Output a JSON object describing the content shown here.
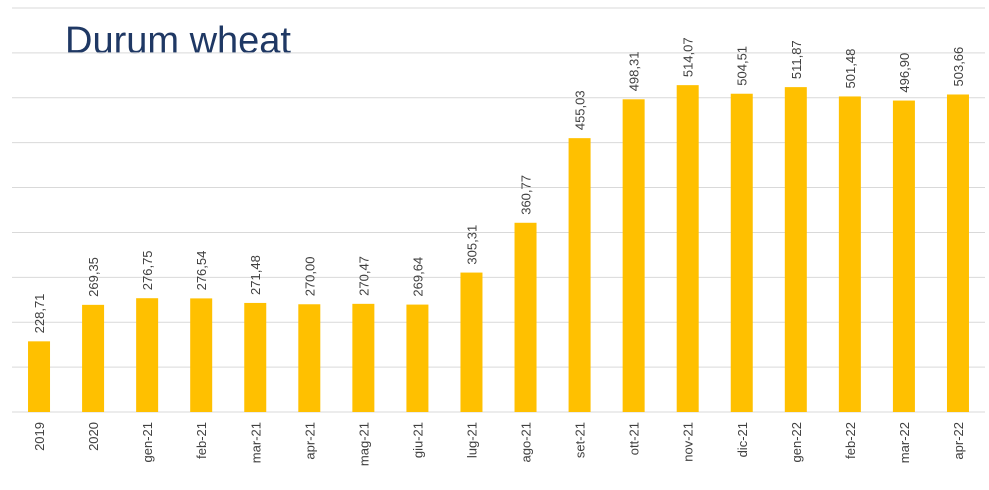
{
  "chart_data": {
    "type": "bar",
    "title": "Durum wheat",
    "categories": [
      "2019",
      "2020",
      "gen-21",
      "feb-21",
      "mar-21",
      "apr-21",
      "mag-21",
      "giu-21",
      "lug-21",
      "ago-21",
      "set-21",
      "ott-21",
      "nov-21",
      "dic-21",
      "gen-22",
      "feb-22",
      "mar-22",
      "apr-22"
    ],
    "values": [
      228.71,
      269.35,
      276.75,
      276.54,
      271.48,
      270.0,
      270.47,
      269.64,
      305.31,
      360.77,
      455.03,
      498.31,
      514.07,
      504.51,
      511.87,
      501.48,
      496.9,
      503.66
    ],
    "value_labels": [
      "228,71",
      "269,35",
      "276,75",
      "276,54",
      "271,48",
      "270,00",
      "270,47",
      "269,64",
      "305,31",
      "360,77",
      "455,03",
      "498,31",
      "514,07",
      "504,51",
      "511,87",
      "501,48",
      "496,90",
      "503,66"
    ],
    "color": "#ffc000",
    "ylim": [
      150,
      600
    ],
    "yticks": [
      150,
      200,
      250,
      300,
      350,
      400,
      450,
      500,
      550,
      600
    ],
    "grid": true
  }
}
